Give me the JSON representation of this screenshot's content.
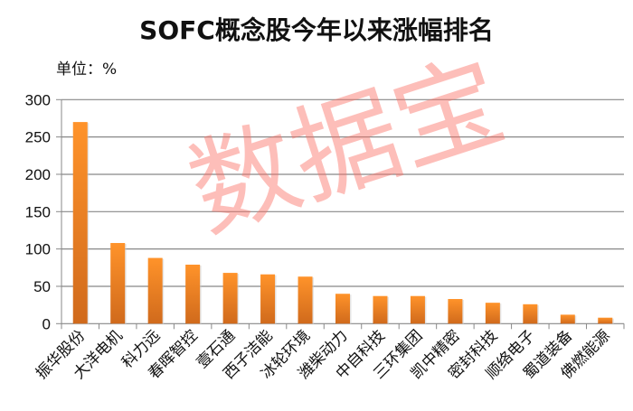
{
  "chart_data": {
    "type": "bar",
    "title": "SOFC概念股今年以来涨幅排名",
    "unit_label": "单位：%",
    "categories": [
      "振华股份",
      "大洋电机",
      "科力远",
      "春晖智控",
      "壹石通",
      "西子洁能",
      "冰轮环境",
      "潍柴动力",
      "中自科技",
      "三环集团",
      "凯中精密",
      "密封科技",
      "顺络电子",
      "蜀道装备",
      "佛燃能源"
    ],
    "values": [
      270,
      108,
      88,
      79,
      68,
      66,
      63,
      40,
      37,
      37,
      33,
      28,
      26,
      12,
      8
    ],
    "ylim": [
      0,
      300
    ],
    "yticks": [
      0,
      50,
      100,
      150,
      200,
      250,
      300
    ],
    "grid": true,
    "bar_color": "#f28a24",
    "watermark": "数据宝"
  }
}
